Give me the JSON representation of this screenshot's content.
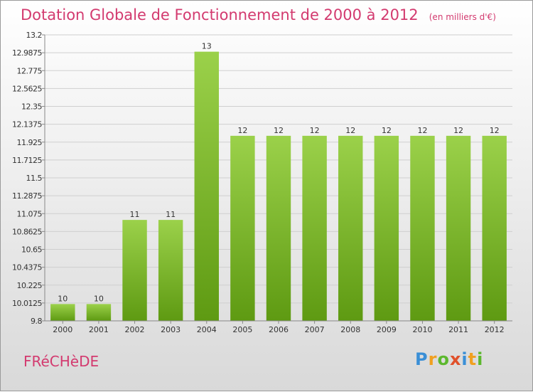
{
  "title": "Dotation Globale de Fonctionnement de 2000 à 2012",
  "unit": "(en milliers d'€)",
  "commune": "FRéCHèDE",
  "logo": {
    "letters": [
      {
        "ch": "P",
        "color": "#3a8fd6"
      },
      {
        "ch": "r",
        "color": "#f0a020"
      },
      {
        "ch": "o",
        "color": "#5cb82e"
      },
      {
        "ch": "x",
        "color": "#e0502a"
      },
      {
        "ch": "i",
        "color": "#3a8fd6"
      },
      {
        "ch": "t",
        "color": "#f0a020"
      },
      {
        "ch": "i",
        "color": "#5cb82e"
      }
    ]
  },
  "chart_data": {
    "type": "bar",
    "title": "Dotation Globale de Fonctionnement de 2000 à 2012",
    "categories": [
      "2000",
      "2001",
      "2002",
      "2003",
      "2004",
      "2005",
      "2006",
      "2007",
      "2008",
      "2009",
      "2010",
      "2011",
      "2012"
    ],
    "values": [
      10,
      10,
      11,
      11,
      13,
      12,
      12,
      12,
      12,
      12,
      12,
      12,
      12
    ],
    "data_labels": [
      "10",
      "10",
      "11",
      "11",
      "13",
      "12",
      "12",
      "12",
      "12",
      "12",
      "12",
      "12",
      "12"
    ],
    "ylim": [
      9.8,
      13.2
    ],
    "yticks": [
      "9.8",
      "10.0125",
      "10.225",
      "10.4375",
      "10.65",
      "10.8625",
      "11.075",
      "11.2875",
      "11.5",
      "11.7125",
      "11.925",
      "12.1375",
      "12.35",
      "12.5625",
      "12.775",
      "12.9875",
      "13.2"
    ],
    "grid": true,
    "bar_color": "#7cbf2e"
  }
}
